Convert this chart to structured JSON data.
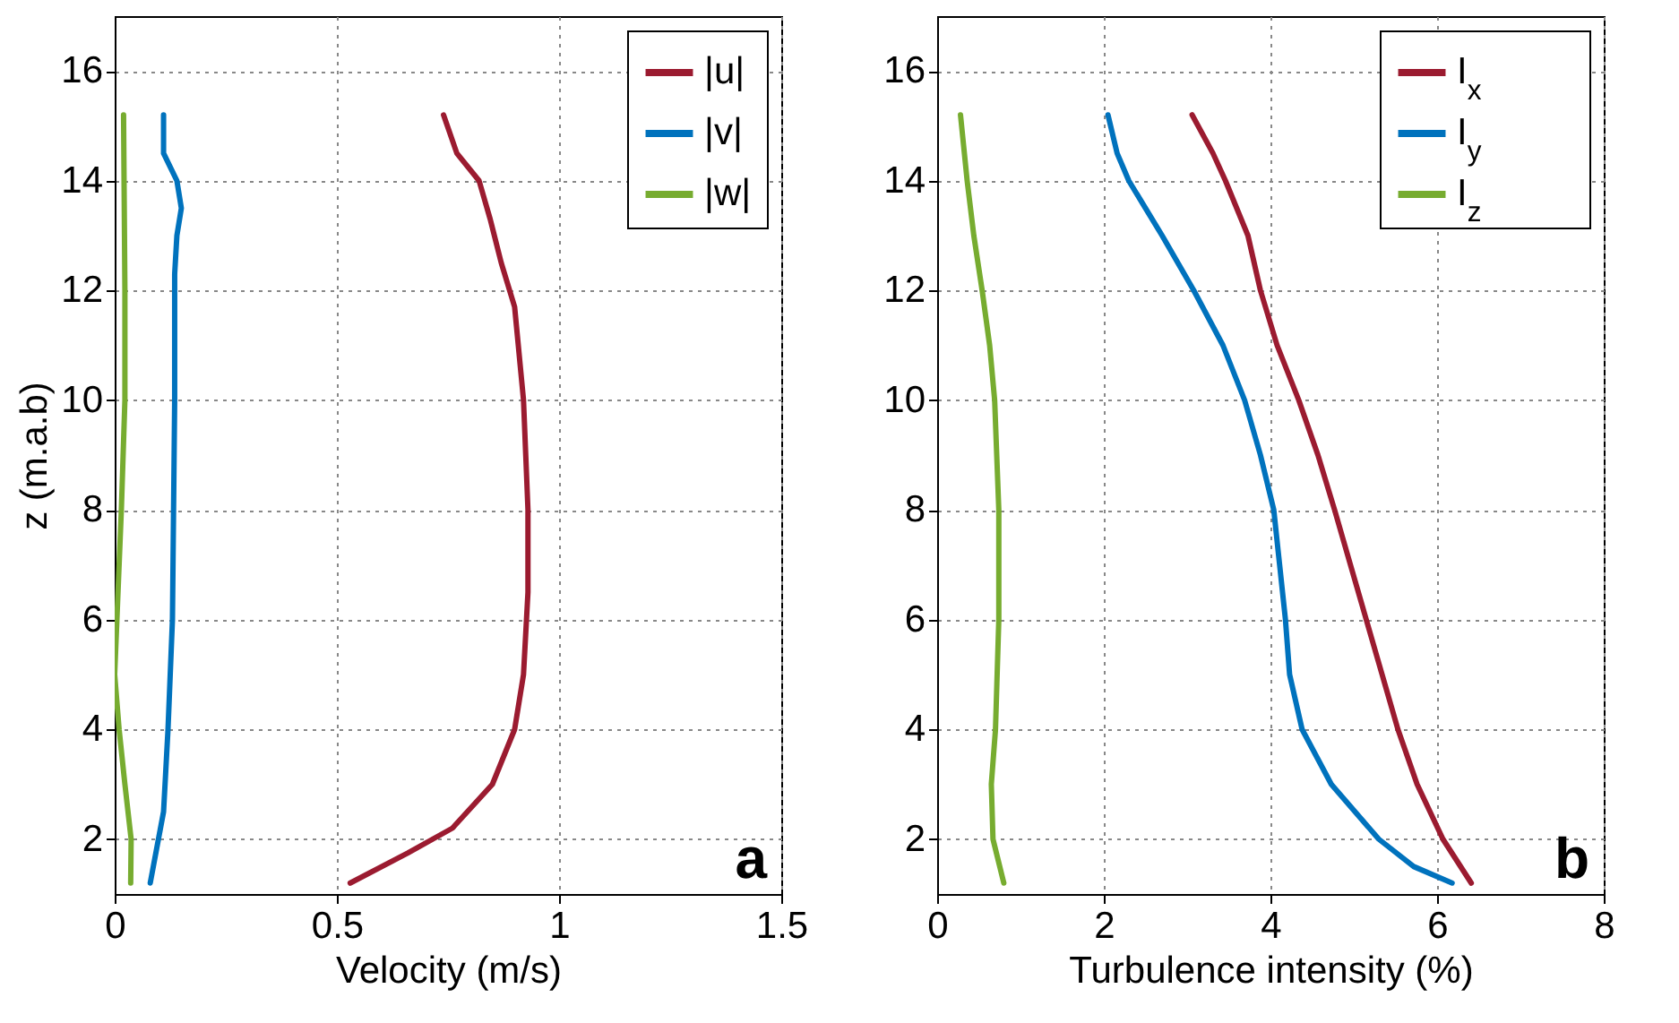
{
  "chart_data": [
    {
      "type": "line",
      "xlabel": "Velocity (m/s)",
      "ylabel": "z (m.a.b)",
      "xlim": [
        0,
        1.5
      ],
      "xticks": [
        0,
        0.5,
        1,
        1.5
      ],
      "ylim": [
        1,
        17
      ],
      "yticks": [
        2,
        4,
        6,
        8,
        10,
        12,
        14,
        16
      ],
      "grid": true,
      "legend": "top right",
      "annotations": [
        "a"
      ],
      "series": [
        {
          "name": "|u|",
          "color": "#9b1b30",
          "x": [
            0.74,
            0.77,
            0.82,
            0.845,
            0.87,
            0.9,
            0.92,
            0.93,
            0.93,
            0.92,
            0.9,
            0.85,
            0.76,
            0.66,
            0.53
          ],
          "values": [
            15.2,
            14.5,
            14,
            13.3,
            12.5,
            11.7,
            10,
            8,
            6.5,
            5,
            4,
            3,
            2.2,
            1.75,
            1.2
          ]
        },
        {
          "name": "|v|",
          "color": "#0072bd",
          "x": [
            0.11,
            0.11,
            0.14,
            0.15,
            0.14,
            0.135,
            0.135,
            0.13,
            0.12,
            0.11,
            0.08
          ],
          "values": [
            15.2,
            14.5,
            14,
            13.5,
            13,
            12.3,
            10,
            6,
            4,
            2.5,
            1.2
          ]
        },
        {
          "name": "|w|",
          "color": "#77ac30",
          "x": [
            0.02,
            0.023,
            0.023,
            0.015,
            0.005,
            0,
            0.01,
            0.023,
            0.037,
            0.036
          ],
          "values": [
            15.2,
            12,
            10,
            8,
            6,
            5,
            4,
            3,
            2,
            1.2
          ]
        }
      ]
    },
    {
      "type": "line",
      "xlabel": "Turbulence intensity (%)",
      "xlim": [
        0,
        8
      ],
      "xticks": [
        0,
        2,
        4,
        6,
        8
      ],
      "ylim": [
        1,
        17
      ],
      "yticks": [
        2,
        4,
        6,
        8,
        10,
        12,
        14,
        16
      ],
      "grid": true,
      "legend": "top right",
      "annotations": [
        "b"
      ],
      "series": [
        {
          "name": "I$_{x}$",
          "color": "#9b1b30",
          "x": [
            3.06,
            3.31,
            3.46,
            3.73,
            3.88,
            4.08,
            4.34,
            4.57,
            4.77,
            4.96,
            5.15,
            5.34,
            5.53,
            5.76,
            6.07,
            6.41
          ],
          "values": [
            15.2,
            14.5,
            14,
            13,
            12,
            11,
            10,
            9,
            8,
            7,
            6,
            5,
            4,
            3,
            2,
            1.2
          ]
        },
        {
          "name": "I$_{y}$",
          "color": "#0072bd",
          "x": [
            2.05,
            2.16,
            2.3,
            2.7,
            3.08,
            3.43,
            3.69,
            3.88,
            4.04,
            4.11,
            4.18,
            4.23,
            4.38,
            4.73,
            5.3,
            5.72,
            6.18
          ],
          "values": [
            15.2,
            14.5,
            14,
            13,
            12,
            11,
            10,
            9,
            8,
            7,
            6,
            5,
            4,
            3,
            2,
            1.5,
            1.2
          ]
        },
        {
          "name": "I$_{z}$",
          "color": "#77ac30",
          "x": [
            0.28,
            0.36,
            0.44,
            0.54,
            0.63,
            0.69,
            0.74,
            0.74,
            0.7,
            0.65,
            0.67,
            0.8
          ],
          "values": [
            15.2,
            14,
            13,
            12,
            11,
            10,
            8,
            6,
            4,
            3,
            2,
            1.2
          ]
        }
      ]
    }
  ]
}
